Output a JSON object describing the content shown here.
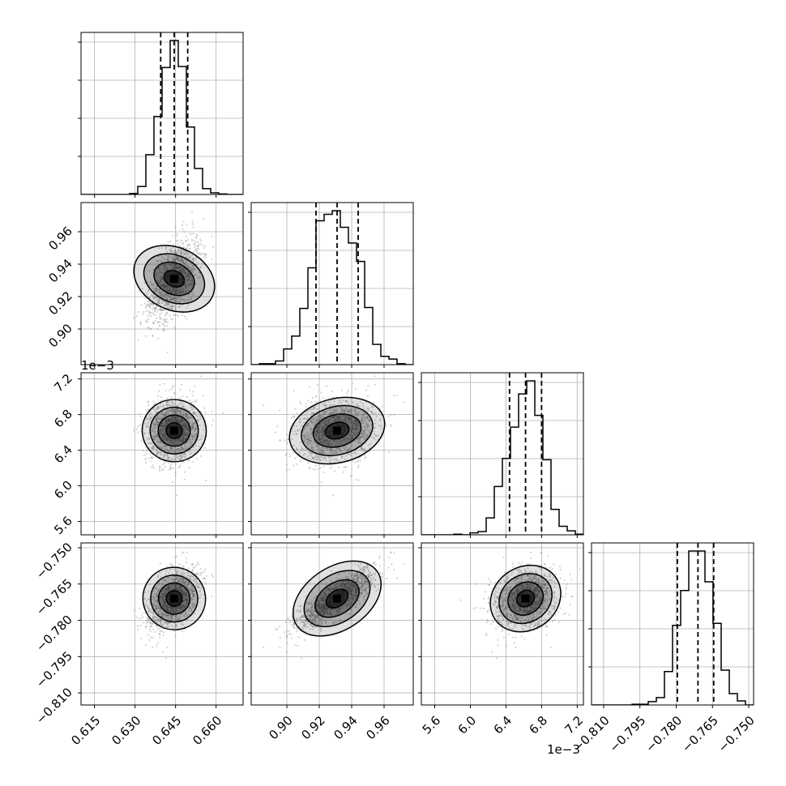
{
  "chart_data": {
    "type": "corner",
    "params": [
      {
        "range": [
          0.61,
          0.67
        ],
        "ticks": [
          "0.615",
          "0.630",
          "0.645",
          "0.660"
        ],
        "tick_values": [
          0.615,
          0.63,
          0.645,
          0.66
        ],
        "offset": "",
        "mean": 0.6445,
        "sd": 0.005,
        "quantiles": [
          0.6395,
          0.6445,
          0.6495
        ]
      },
      {
        "range": [
          0.878,
          0.978
        ],
        "ticks": [
          "0.90",
          "0.92",
          "0.94",
          "0.96"
        ],
        "tick_values": [
          0.9,
          0.92,
          0.94,
          0.96
        ],
        "offset": "",
        "mean": 0.931,
        "sd": 0.013,
        "quantiles": [
          0.918,
          0.931,
          0.944
        ]
      },
      {
        "range": [
          5.45,
          7.27
        ],
        "ticks": [
          "5.6",
          "6.0",
          "6.4",
          "6.8",
          "7.2"
        ],
        "tick_values": [
          5.6,
          6.0,
          6.4,
          6.8,
          7.2
        ],
        "offset": "1e−3",
        "mean": 6.62,
        "sd": 0.18,
        "quantiles": [
          6.44,
          6.62,
          6.8
        ]
      },
      {
        "range": [
          -0.815,
          -0.748
        ],
        "ticks": [
          "−0.810",
          "−0.795",
          "−0.780",
          "−0.765",
          "−0.750"
        ],
        "tick_values": [
          -0.81,
          -0.795,
          -0.78,
          -0.765,
          -0.75
        ],
        "offset": "",
        "mean": -0.771,
        "sd": 0.0065,
        "quantiles": [
          -0.7795,
          -0.771,
          -0.7645
        ]
      }
    ],
    "correlations": [
      [
        1,
        0.55,
        0.05,
        0.45
      ],
      [
        0.55,
        1,
        0.15,
        0.7
      ],
      [
        0.05,
        0.15,
        1,
        0.05
      ],
      [
        0.45,
        0.7,
        0.05,
        1
      ]
    ],
    "contour_levels": [
      0.5,
      1.0,
      1.5,
      2.0
    ],
    "histogram_bins": 20,
    "grid": true,
    "colors": {
      "hist": "#000000",
      "quantile": "#000000",
      "scatter": "#808080",
      "grid": "#b0b0b0",
      "density": "#000000"
    }
  }
}
